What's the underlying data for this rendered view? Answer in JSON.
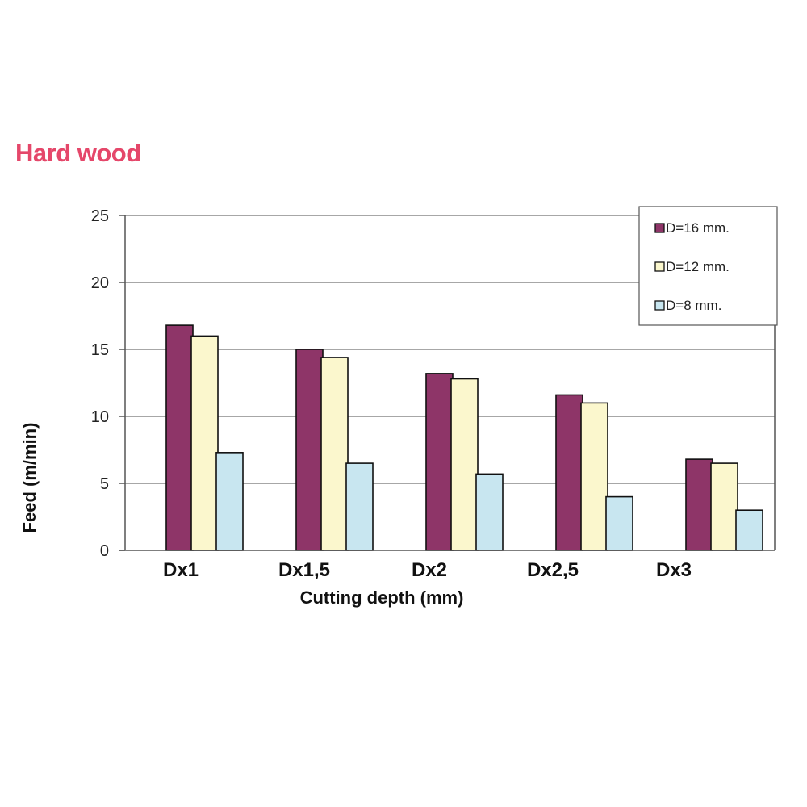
{
  "chart_data": {
    "type": "bar",
    "title": "Hard wood",
    "xlabel": "Cutting depth (mm)",
    "ylabel": "Feed (m/min)",
    "categories": [
      "Dx1",
      "Dx1,5",
      "Dx2",
      "Dx2,5",
      "Dx3"
    ],
    "series": [
      {
        "name": "D=16 mm.",
        "values": [
          16.8,
          15.0,
          13.2,
          11.6,
          6.8
        ],
        "color": "#8e3568"
      },
      {
        "name": "D=12 mm.",
        "values": [
          16.0,
          14.4,
          12.8,
          11.0,
          6.5
        ],
        "color": "#fbf7cd"
      },
      {
        "name": "D=8 mm.",
        "values": [
          7.3,
          6.5,
          5.7,
          4.0,
          3.0
        ],
        "color": "#c8e6f0"
      }
    ],
    "ylim": [
      0,
      25
    ],
    "yticks": [
      0,
      5,
      10,
      15,
      20,
      25
    ],
    "grid": true,
    "legend_position": "top-right"
  }
}
